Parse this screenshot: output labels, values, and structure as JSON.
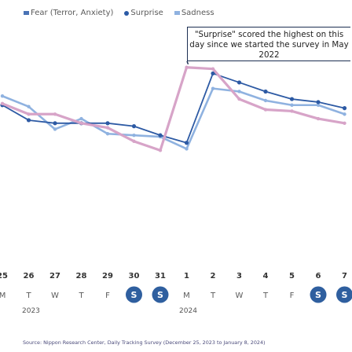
{
  "chart_data": {
    "type": "line",
    "title": "",
    "xlabel": "",
    "ylabel": "",
    "legend": [
      "Fear (Terror, Anxiety)",
      "Surprise",
      "Sadness"
    ],
    "legend_position": "top-left",
    "grid": false,
    "dates": [
      "25",
      "26",
      "27",
      "28",
      "29",
      "30",
      "31",
      "1",
      "2",
      "3",
      "4",
      "5",
      "6",
      "7"
    ],
    "weekdays": [
      "M",
      "T",
      "W",
      "T",
      "F",
      "S",
      "S",
      "M",
      "T",
      "W",
      "T",
      "F",
      "S",
      "S"
    ],
    "weekend_indices": [
      5,
      6,
      12,
      13
    ],
    "years": [
      "2023",
      "2024"
    ],
    "ylim": [
      0,
      100
    ],
    "series": [
      {
        "name": "Fear (Terror, Anxiety)",
        "color": "#2d5aa4",
        "values": [
          72,
          62,
          60,
          60,
          60,
          58,
          52,
          47,
          93,
          87,
          81,
          76,
          74,
          70
        ]
      },
      {
        "name": "Surprise",
        "color": "#d7a4c8",
        "values": [
          73,
          66,
          66,
          60,
          57,
          48,
          42,
          97,
          96,
          76,
          69,
          68,
          63,
          60
        ]
      },
      {
        "name": "Sadness",
        "color": "#8fb2e0",
        "values": [
          78,
          71,
          56,
          63,
          53,
          52,
          51,
          43,
          83,
          81,
          75,
          72,
          72,
          66
        ]
      }
    ],
    "annotation": "\"Surprise\" scored the highest on this day since we started the survey in May 2022"
  },
  "source": "Source: Nippon Research Center, Daily Tracking Survey (December 25, 2023 to January 8, 2024)"
}
